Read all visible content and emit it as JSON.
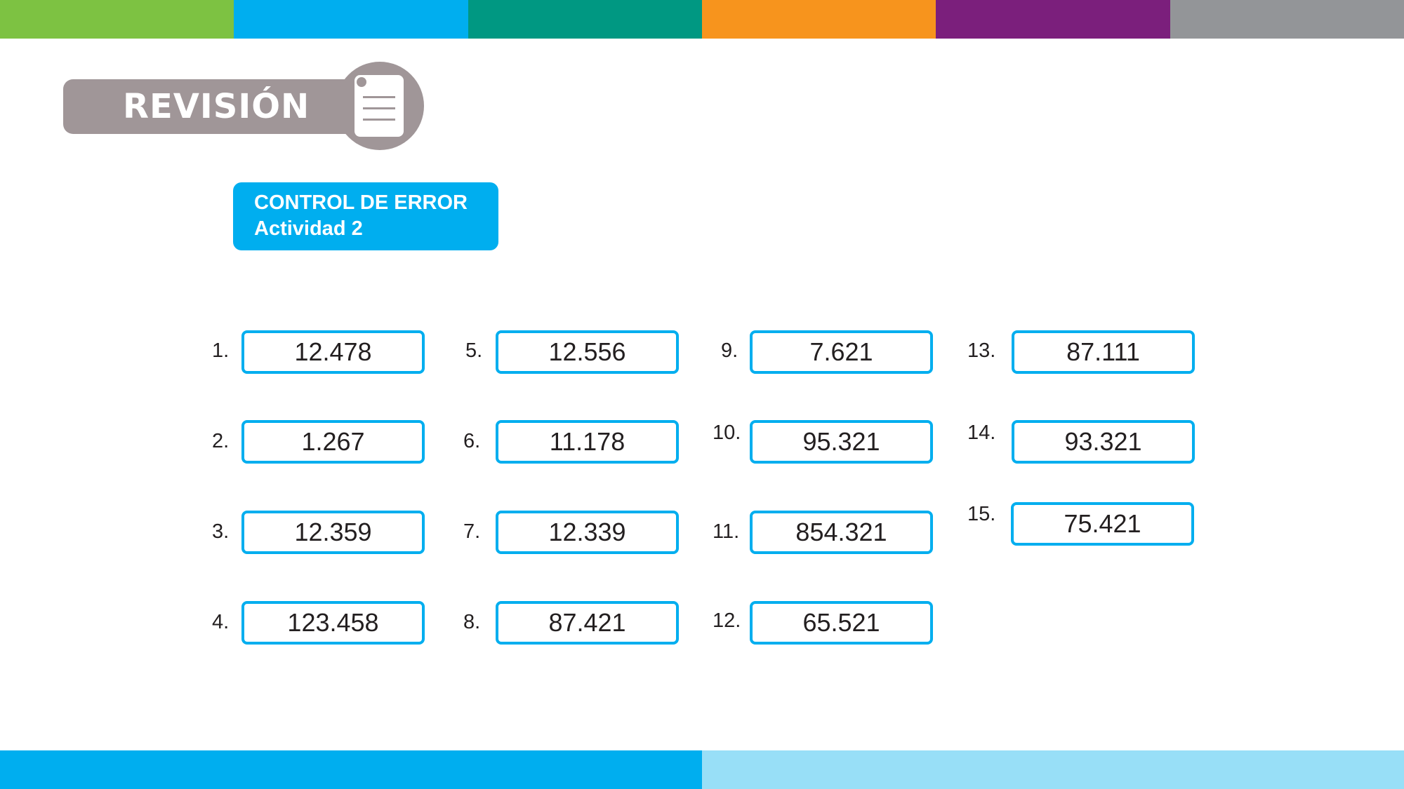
{
  "header": {
    "revision_label": "REVISIÓN",
    "colors": [
      "#7dc242",
      "#00aeef",
      "#009882",
      "#f7941d",
      "#7b1f7c",
      "#939598"
    ]
  },
  "control": {
    "title": "CONTROL DE ERROR",
    "subtitle": "Actividad 2"
  },
  "answers": [
    {
      "num": "1.",
      "value": "12.478"
    },
    {
      "num": "2.",
      "value": "1.267"
    },
    {
      "num": "3.",
      "value": "12.359"
    },
    {
      "num": "4.",
      "value": "123.458"
    },
    {
      "num": "5.",
      "value": "12.556"
    },
    {
      "num": "6.",
      "value": "11.178"
    },
    {
      "num": "7.",
      "value": "12.339"
    },
    {
      "num": "8.",
      "value": "87.421"
    },
    {
      "num": "9.",
      "value": "7.621"
    },
    {
      "num": "10.",
      "value": "95.321"
    },
    {
      "num": "11.",
      "value": "854.321"
    },
    {
      "num": "12.",
      "value": "65.521"
    },
    {
      "num": "13.",
      "value": "87.111"
    },
    {
      "num": "14.",
      "value": "93.321"
    },
    {
      "num": "15.",
      "value": "75.421"
    }
  ],
  "footer": {
    "colors": [
      "#00aeef",
      "#98dff7"
    ]
  }
}
